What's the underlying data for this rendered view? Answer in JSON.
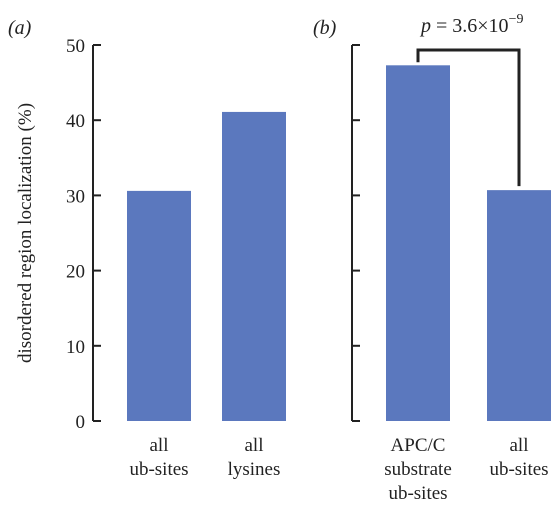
{
  "chart_data": [
    {
      "type": "bar",
      "panel_label": "(a)",
      "ylabel": "disordered region localization (%)",
      "ylim": [
        0,
        50
      ],
      "yticks": [
        0,
        10,
        20,
        30,
        40,
        50
      ],
      "categories": [
        [
          "all",
          "ub-sites"
        ],
        [
          "all",
          "lysines"
        ]
      ],
      "values": [
        30.6,
        41.1
      ],
      "grid": false
    },
    {
      "type": "bar",
      "panel_label": "(b)",
      "ylim": [
        0,
        50
      ],
      "categories": [
        [
          "APC/C",
          "substrate",
          "ub-sites"
        ],
        [
          "all",
          "ub-sites"
        ]
      ],
      "values": [
        47.3,
        30.7
      ],
      "grid": false,
      "annotation": {
        "p_symbol": "p",
        "equals": " = 3.6×10",
        "exponent": "−9"
      }
    }
  ],
  "colors": {
    "bar": "#5B78BE",
    "axis": "#222222",
    "text": "#222222"
  }
}
